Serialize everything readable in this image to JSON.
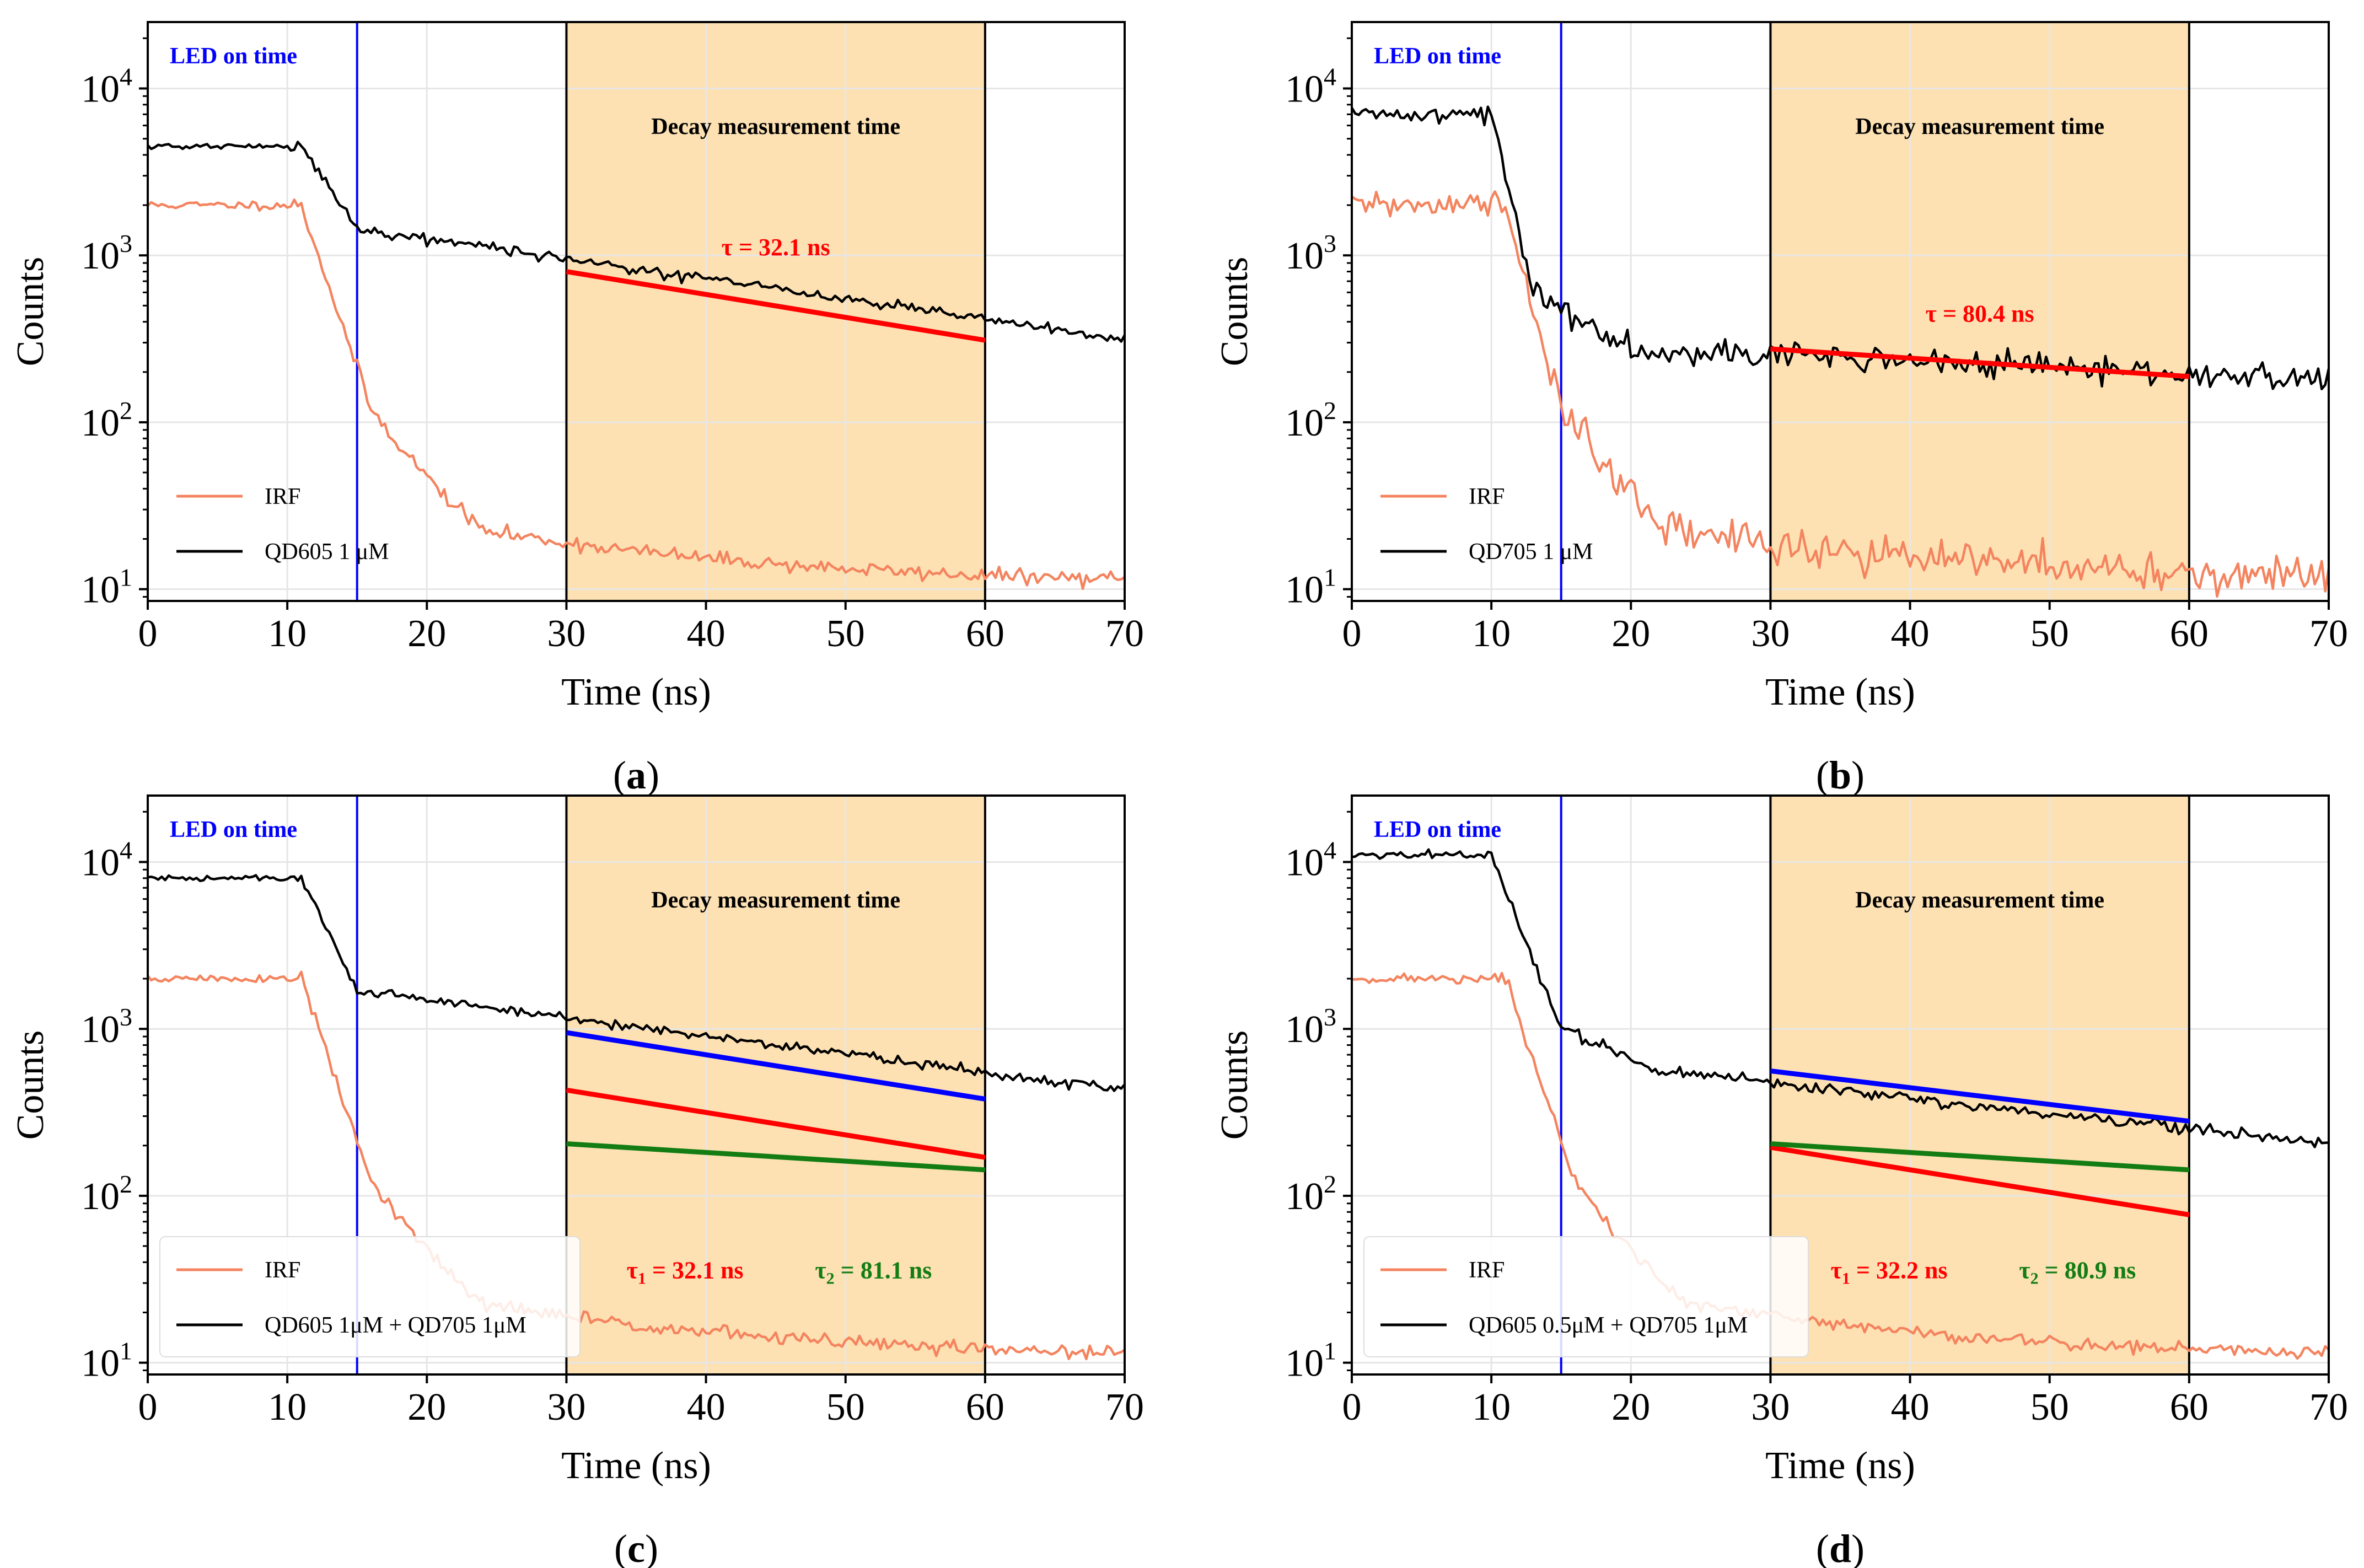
{
  "figure": {
    "panels": [
      "a",
      "b",
      "c",
      "d"
    ]
  },
  "colors": {
    "irf": "#f4845f",
    "sample": "#000000",
    "led_line": "#0000ff",
    "led_text": "#0000ff",
    "shade": "#fde1b3",
    "fit_red": "#ff0000",
    "fit_green": "#137d13",
    "fit_blue": "#0000ff",
    "grid": "#e6e6e6"
  },
  "chart_data": [
    {
      "id": "a",
      "type": "line",
      "caption_open": "(",
      "caption_letter": "a",
      "caption_close": ")",
      "xlabel": "Time (ns)",
      "ylabel": "Counts",
      "xlim": [
        0,
        70
      ],
      "ylim": [
        8.5,
        25000
      ],
      "yscale": "log",
      "xticks": [
        "0",
        "10",
        "20",
        "30",
        "40",
        "50",
        "60",
        "70"
      ],
      "yticks": [
        {
          "base": "10",
          "exp": "1",
          "value": 10
        },
        {
          "base": "10",
          "exp": "2",
          "value": 100
        },
        {
          "base": "10",
          "exp": "3",
          "value": 1000
        },
        {
          "base": "10",
          "exp": "4",
          "value": 10000
        }
      ],
      "led_line_x": 15,
      "led_label": "LED on time",
      "shade_range": [
        30,
        60
      ],
      "shade_label": "Decay measurement time",
      "series": [
        {
          "name": "IRF",
          "color_key": "irf",
          "model": {
            "plateau": 2000,
            "t0": 11,
            "knee": 16,
            "kneeVal": 120,
            "tail": 11,
            "final": 10.5,
            "noise": 0.05,
            "seed": 11
          }
        },
        {
          "name": "QD605 1 μM",
          "color_key": "sample",
          "model": {
            "plateau": 4500,
            "t0": 11,
            "knee": 15,
            "kneeVal": 1450,
            "slope_tau": 36,
            "noise": 0.035,
            "seed": 21
          }
        }
      ],
      "fits": [
        {
          "color_key": "fit_red",
          "x": [
            30,
            60
          ],
          "y": [
            800,
            310
          ]
        }
      ],
      "tau_labels": [
        {
          "prefix": "τ",
          "sub": "",
          "text": " =  32.1 ns",
          "color_key": "fit_red",
          "x": 45,
          "y": 1000
        }
      ],
      "legend_box": false
    },
    {
      "id": "b",
      "type": "line",
      "caption_open": "(",
      "caption_letter": "b",
      "caption_close": ")",
      "xlabel": "Time (ns)",
      "ylabel": "Counts",
      "xlim": [
        0,
        70
      ],
      "ylim": [
        8.5,
        25000
      ],
      "yscale": "log",
      "xticks": [
        "0",
        "10",
        "20",
        "30",
        "40",
        "50",
        "60",
        "70"
      ],
      "yticks": [
        {
          "base": "10",
          "exp": "1",
          "value": 10
        },
        {
          "base": "10",
          "exp": "2",
          "value": 100
        },
        {
          "base": "10",
          "exp": "3",
          "value": 1000
        },
        {
          "base": "10",
          "exp": "4",
          "value": 10000
        }
      ],
      "led_line_x": 15,
      "led_label": "LED on time",
      "shade_range": [
        30,
        60
      ],
      "shade_label": "Decay measurement time",
      "series": [
        {
          "name": "IRF",
          "color_key": "irf",
          "model": {
            "plateau": 2000,
            "t0": 11,
            "knee": 15,
            "kneeVal": 120,
            "tail": 10,
            "final": 11,
            "noise": 0.14,
            "seed": 31
          }
        },
        {
          "name": "QD705 1 μM",
          "color_key": "sample",
          "model": {
            "plateau": 7000,
            "t0": 10,
            "knee": 13,
            "kneeVal": 600,
            "plateau2": 280,
            "settle": 20,
            "slope_tau": 110,
            "noise": 0.09,
            "seed": 41
          }
        }
      ],
      "fits": [
        {
          "color_key": "fit_red",
          "x": [
            30,
            60
          ],
          "y": [
            275,
            188
          ]
        }
      ],
      "tau_labels": [
        {
          "prefix": "τ",
          "sub": "",
          "text": " = 80.4 ns",
          "color_key": "fit_red",
          "x": 45,
          "y": 400
        }
      ],
      "legend_box": false
    },
    {
      "id": "c",
      "type": "line",
      "caption_open": "(",
      "caption_letter": "c",
      "caption_close": ")",
      "xlabel": "Time (ns)",
      "ylabel": "Counts",
      "xlim": [
        0,
        70
      ],
      "ylim": [
        8.5,
        25000
      ],
      "yscale": "log",
      "xticks": [
        "0",
        "10",
        "20",
        "30",
        "40",
        "50",
        "60",
        "70"
      ],
      "yticks": [
        {
          "base": "10",
          "exp": "1",
          "value": 10
        },
        {
          "base": "10",
          "exp": "2",
          "value": 100
        },
        {
          "base": "10",
          "exp": "3",
          "value": 1000
        },
        {
          "base": "10",
          "exp": "4",
          "value": 10000
        }
      ],
      "led_line_x": 15,
      "led_label": "LED on time",
      "shade_range": [
        30,
        60
      ],
      "shade_label": "Decay measurement time",
      "series": [
        {
          "name": "IRF",
          "color_key": "irf",
          "model": {
            "plateau": 2000,
            "t0": 11,
            "knee": 16,
            "kneeVal": 120,
            "tail": 11,
            "final": 10.5,
            "noise": 0.05,
            "seed": 51
          }
        },
        {
          "name": "QD605 1μM + QD705 1μM",
          "color_key": "sample",
          "model": {
            "plateau": 8000,
            "t0": 11,
            "knee": 15,
            "kneeVal": 1700,
            "slope_tau": 40,
            "noise": 0.035,
            "seed": 61
          }
        }
      ],
      "fits": [
        {
          "color_key": "fit_blue",
          "x": [
            30,
            60
          ],
          "y": [
            950,
            380
          ]
        },
        {
          "color_key": "fit_red",
          "x": [
            30,
            60
          ],
          "y": [
            430,
            170
          ]
        },
        {
          "color_key": "fit_green",
          "x": [
            30,
            60
          ],
          "y": [
            205,
            143
          ]
        }
      ],
      "tau_labels": [
        {
          "prefix": "τ",
          "sub": "1",
          "text": " =  32.1 ns",
          "color_key": "fit_red",
          "x": 38.5,
          "y": 32
        },
        {
          "prefix": "τ",
          "sub": "2",
          "text": " =  81.1 ns",
          "color_key": "fit_green",
          "x": 52,
          "y": 32
        }
      ],
      "legend_box": true
    },
    {
      "id": "d",
      "type": "line",
      "caption_open": "(",
      "caption_letter": "d",
      "caption_close": ")",
      "xlabel": "Time (ns)",
      "ylabel": "Counts",
      "xlim": [
        0,
        70
      ],
      "ylim": [
        8.5,
        25000
      ],
      "yscale": "log",
      "xticks": [
        "0",
        "10",
        "20",
        "30",
        "40",
        "50",
        "60",
        "70"
      ],
      "yticks": [
        {
          "base": "10",
          "exp": "1",
          "value": 10
        },
        {
          "base": "10",
          "exp": "2",
          "value": 100
        },
        {
          "base": "10",
          "exp": "3",
          "value": 1000
        },
        {
          "base": "10",
          "exp": "4",
          "value": 10000
        }
      ],
      "led_line_x": 15,
      "led_label": "LED on time",
      "shade_range": [
        30,
        60
      ],
      "shade_label": "Decay measurement time",
      "series": [
        {
          "name": "IRF",
          "color_key": "irf",
          "model": {
            "plateau": 2000,
            "t0": 11,
            "knee": 16,
            "kneeVal": 120,
            "tail": 11,
            "final": 10.5,
            "noise": 0.05,
            "seed": 71
          }
        },
        {
          "name": "QD605 0.5μM + QD705 1μM",
          "color_key": "sample",
          "model": {
            "plateau": 11000,
            "t0": 10,
            "knee": 15,
            "kneeVal": 1000,
            "plateau2": 560,
            "settle": 22,
            "slope_tau": 48,
            "noise": 0.04,
            "seed": 81
          }
        }
      ],
      "fits": [
        {
          "color_key": "fit_blue",
          "x": [
            30,
            60
          ],
          "y": [
            560,
            280
          ]
        },
        {
          "color_key": "fit_red",
          "x": [
            30,
            60
          ],
          "y": [
            195,
            77
          ]
        },
        {
          "color_key": "fit_green",
          "x": [
            30,
            60
          ],
          "y": [
            205,
            143
          ]
        }
      ],
      "tau_labels": [
        {
          "prefix": "τ",
          "sub": "1",
          "text": " =  32.2 ns",
          "color_key": "fit_red",
          "x": 38.5,
          "y": 32
        },
        {
          "prefix": "τ",
          "sub": "2",
          "text": " =  80.9 ns",
          "color_key": "fit_green",
          "x": 52,
          "y": 32
        }
      ],
      "legend_box": true
    }
  ]
}
